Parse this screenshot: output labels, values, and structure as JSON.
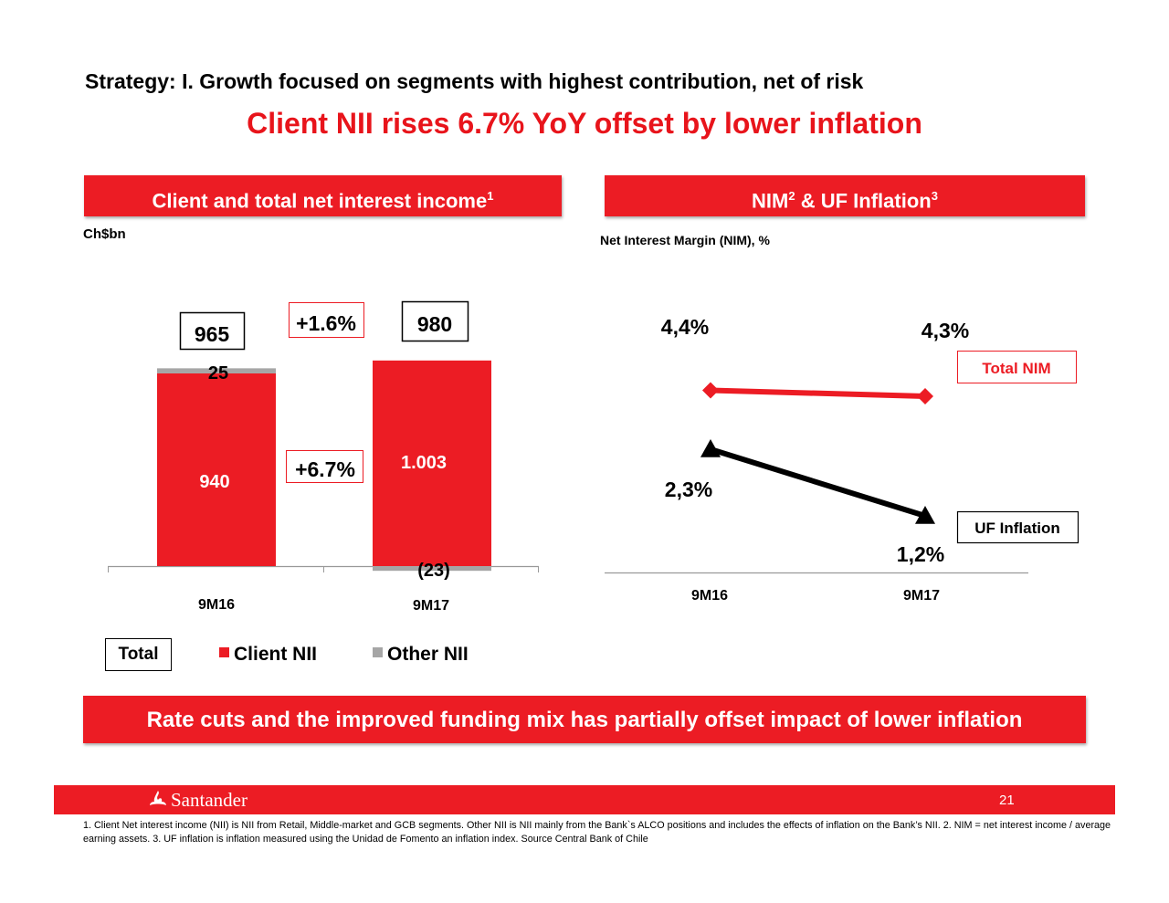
{
  "header": {
    "strategy": "Strategy: I. Growth focused on segments with highest contribution, net of risk",
    "headline": "Client NII rises 6.7% YoY offset by lower inflation"
  },
  "left_panel": {
    "title": "Client and total net interest income",
    "title_sup": "1",
    "unit": "Ch$bn"
  },
  "right_panel": {
    "title_a": "NIM",
    "title_sup_a": "2",
    "title_b": " & UF Inflation",
    "title_sup_b": "3",
    "subtitle": "Net Interest Margin (NIM), %"
  },
  "chart_data": [
    {
      "type": "bar",
      "stacked": true,
      "categories": [
        "9M16",
        "9M17"
      ],
      "series": [
        {
          "name": "Client NII",
          "values": [
            940,
            1003
          ],
          "labels": [
            "940",
            "1.003"
          ],
          "color": "#ec1c24"
        },
        {
          "name": "Other NII",
          "values": [
            25,
            -23
          ],
          "labels": [
            "25",
            "(23)"
          ],
          "color": "#a6a6a6"
        }
      ],
      "totals": [
        965,
        980
      ],
      "total_labels": [
        "965",
        "980"
      ],
      "growth_labels": {
        "total": "+1.6%",
        "client": "+6.7%"
      },
      "legend": [
        "Total",
        "Client NII",
        "Other NII"
      ],
      "ylim": [
        -40,
        1130
      ]
    },
    {
      "type": "line",
      "x": [
        "9M16",
        "9M17"
      ],
      "series": [
        {
          "name": "Total NIM",
          "values": [
            4.4,
            4.3
          ],
          "labels": [
            "4,4%",
            "4,3%"
          ],
          "color": "#ec1c24"
        },
        {
          "name": "UF Inflation",
          "values": [
            2.3,
            1.2
          ],
          "labels": [
            "2,3%",
            "1,2%"
          ],
          "color": "#000000"
        }
      ],
      "ylim": [
        1.05,
        4.55
      ]
    }
  ],
  "bottom_banner": "Rate cuts and the improved funding mix has partially offset impact of lower inflation",
  "footer": {
    "logo_text": "Santander",
    "page_number": "21",
    "footnote": "1. Client Net interest income (NII) is NII from Retail, Middle-market and GCB segments. Other NII is NII mainly from the Bank`s ALCO positions and includes the effects of inflation on the Bank’s NII. 2. NIM = net interest income / average earning assets. 3. UF inflation is inflation measured using the Unidad de Fomento an inflation index. Source Central Bank of Chile"
  },
  "colors": {
    "accent": "#ec1c24",
    "other": "#a6a6a6",
    "line_black": "#000000"
  }
}
